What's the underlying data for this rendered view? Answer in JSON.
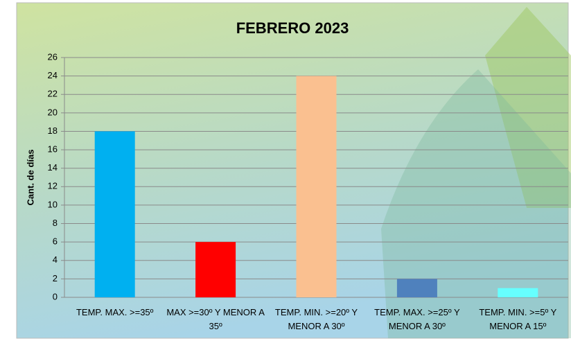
{
  "chart_data": {
    "type": "bar",
    "title": "FEBRERO 2023",
    "y_label": "Cant. de días",
    "categories": [
      "TEMP. MAX. >=35º",
      "MAX >=30º Y MENOR A 35º",
      "TEMP. MIN. >=20º Y MENOR A 30º",
      "TEMP. MAX. >=25º Y MENOR A 30º",
      "TEMP. MIN. >=5º Y MENOR A 15º"
    ],
    "values": [
      18,
      6,
      24,
      2,
      1
    ],
    "colors": [
      "#00b0f0",
      "#ff0000",
      "#fac090",
      "#4f81bd",
      "#66ffff"
    ],
    "ylim": [
      0,
      26
    ],
    "yticks": [
      0,
      2,
      4,
      6,
      8,
      10,
      12,
      14,
      16,
      18,
      20,
      22,
      24,
      26
    ],
    "grid": true
  }
}
